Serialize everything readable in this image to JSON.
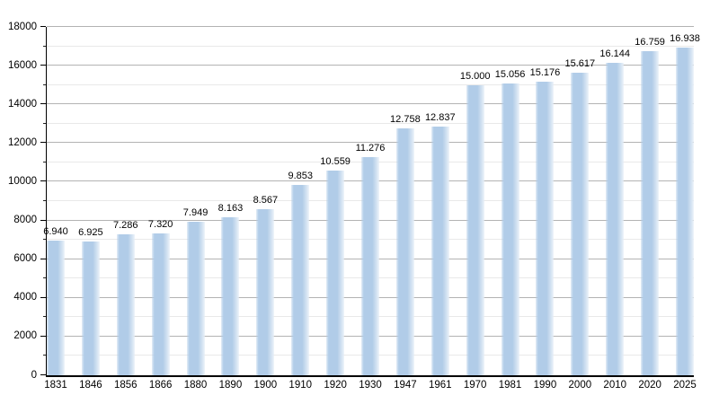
{
  "page": {
    "background": "#ffffff"
  },
  "chart_data": {
    "type": "bar",
    "title": "",
    "xlabel": "",
    "ylabel": "",
    "categories": [
      "1831",
      "1846",
      "1856",
      "1866",
      "1880",
      "1890",
      "1900",
      "1910",
      "1920",
      "1930",
      "1947",
      "1961",
      "1970",
      "1981",
      "1990",
      "2000",
      "2010",
      "2020",
      "2025"
    ],
    "values": [
      6940,
      6925,
      7286,
      7320,
      7949,
      8163,
      8567,
      9853,
      10559,
      11276,
      12758,
      12837,
      15000,
      15056,
      15176,
      15617,
      16144,
      16759,
      16938
    ],
    "value_labels": [
      "6.940",
      "6.925",
      "7.286",
      "7.320",
      "7.949",
      "8.163",
      "8.567",
      "9.853",
      "10.559",
      "11.276",
      "12.758",
      "12.837",
      "15.000",
      "15.056",
      "15.176",
      "15.617",
      "16.144",
      "16.759",
      "16.938"
    ],
    "ylim": [
      0,
      18000
    ],
    "y_major_step": 2000,
    "y_minor_step": 1000,
    "y_tick_labels": [
      "0",
      "2000",
      "4000",
      "6000",
      "8000",
      "10000",
      "12000",
      "14000",
      "16000",
      "18000"
    ],
    "grid": "major-and-minor-horizontal",
    "legend": null,
    "colors": {
      "bar": "#b1cce8",
      "bar_edge_light": "#dce8f4",
      "grid_major": "#b3b3b3",
      "grid_minor": "#e9e9e9",
      "axis": "#000000",
      "text": "#000000",
      "background": "#ffffff"
    }
  }
}
